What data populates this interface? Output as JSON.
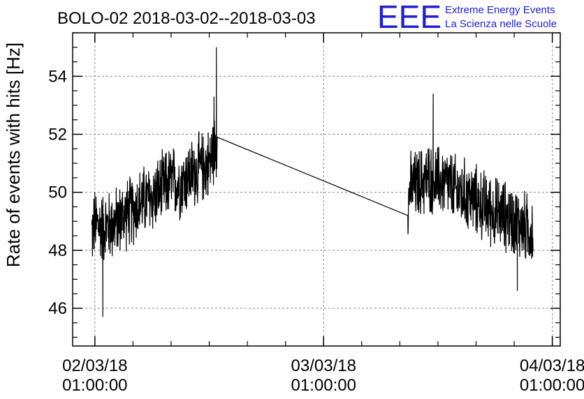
{
  "chart_data": {
    "type": "line",
    "title": "BOLO-02 2018-03-02--2018-03-03",
    "ylabel": "Rate of events with hits [Hz]",
    "xlabel": "",
    "xlim": [
      "2018-03-01 22:40",
      "2018-03-04 01:50"
    ],
    "ylim": [
      44.7,
      55.5
    ],
    "y_ticks": [
      46,
      48,
      50,
      52,
      54
    ],
    "x_ticks": [
      {
        "date": "02/03/18",
        "time": "01:00:00",
        "at": "2018-03-02 01:00"
      },
      {
        "date": "03/03/18",
        "time": "01:00:00",
        "at": "2018-03-03 01:00"
      },
      {
        "date": "04/03/18",
        "time": "01:00:00",
        "at": "2018-03-04 01:00"
      }
    ],
    "grid": true,
    "series": [
      {
        "color": "#000000",
        "x": [
          "2018-03-02 00:40",
          "2018-03-02 01:00",
          "2018-03-02 02:00",
          "2018-03-02 03:00",
          "2018-03-02 04:00",
          "2018-03-02 05:00",
          "2018-03-02 06:00",
          "2018-03-02 07:00",
          "2018-03-02 08:00",
          "2018-03-02 09:00",
          "2018-03-02 10:00",
          "2018-03-02 11:00",
          "2018-03-02 12:00",
          "2018-03-02 13:00",
          "2018-03-02 13:50",
          "2018-03-03 09:50",
          "2018-03-03 10:00",
          "2018-03-03 11:00",
          "2018-03-03 12:00",
          "2018-03-03 13:00",
          "2018-03-03 14:00",
          "2018-03-03 15:00",
          "2018-03-03 16:00",
          "2018-03-03 17:00",
          "2018-03-03 18:00",
          "2018-03-03 19:00",
          "2018-03-03 20:00",
          "2018-03-03 21:00",
          "2018-03-03 22:00",
          "2018-03-03 23:00"
        ],
        "y": [
          48.6,
          48.9,
          48.8,
          48.9,
          49.2,
          49.4,
          49.7,
          49.8,
          50.1,
          50.4,
          50.3,
          50.6,
          50.8,
          51.0,
          51.9,
          49.2,
          50.1,
          50.3,
          50.5,
          50.4,
          50.3,
          50.0,
          49.9,
          49.7,
          49.5,
          49.3,
          49.2,
          49.0,
          48.8,
          48.7
        ],
        "noise_amplitude": 1.3,
        "spikes": [
          {
            "x": "2018-03-02 13:45",
            "y": 55.0
          },
          {
            "x": "2018-03-02 13:30",
            "y": 53.3
          },
          {
            "x": "2018-03-02 01:50",
            "y": 45.7
          },
          {
            "x": "2018-03-03 12:30",
            "y": 53.4
          },
          {
            "x": "2018-03-03 21:20",
            "y": 46.6
          }
        ],
        "gap": {
          "from": "2018-03-02 13:50",
          "to": "2018-03-03 09:50"
        }
      }
    ]
  },
  "logo": {
    "mark": "EEE",
    "line1": "Extreme Energy Events",
    "line2": "La Scienza nelle Scuole",
    "color": "#1f1fd6"
  }
}
